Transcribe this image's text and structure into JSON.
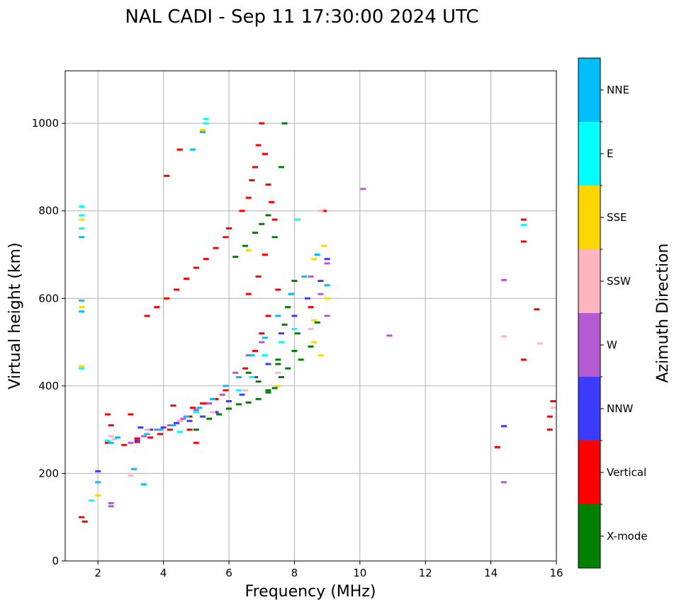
{
  "chart_data": {
    "type": "scatter",
    "title": "NAL CADI - Sep 11 17:30:00 2024 UTC",
    "xlabel": "Frequency (MHz)",
    "ylabel": "Virtual height (km)",
    "xlim": [
      1,
      16
    ],
    "ylim": [
      0,
      1120
    ],
    "xticks": [
      2,
      4,
      6,
      8,
      10,
      12,
      14,
      16
    ],
    "yticks": [
      0,
      200,
      400,
      600,
      800,
      1000
    ],
    "grid": true,
    "colorbar": {
      "label": "Azimuth Direction",
      "position": "right",
      "categories": [
        {
          "name": "X-mode",
          "color": "#008000"
        },
        {
          "name": "Vertical",
          "color": "#ff0000"
        },
        {
          "name": "NNW",
          "color": "#3c3cff"
        },
        {
          "name": "W",
          "color": "#b45ad2"
        },
        {
          "name": "SSW",
          "color": "#ffb6c1"
        },
        {
          "name": "SSE",
          "color": "#ffd700"
        },
        {
          "name": "E",
          "color": "#00ffff"
        },
        {
          "name": "NNE",
          "color": "#00bfff"
        }
      ]
    },
    "series": [
      {
        "name": "X-mode",
        "color": "#008000",
        "x": [
          5.0,
          5.4,
          5.7,
          6.0,
          6.3,
          6.6,
          6.9,
          7.2,
          7.4,
          7.6,
          7.8,
          8.0,
          6.2,
          6.5,
          6.8,
          7.0,
          7.2,
          7.4,
          7.5,
          7.6,
          7.7,
          7.8,
          7.9,
          8.0,
          8.1,
          8.2,
          6.6,
          6.9,
          7.2,
          7.5,
          8.5,
          8.7,
          7.6,
          7.7
        ],
        "y": [
          300,
          325,
          335,
          348,
          358,
          362,
          370,
          385,
          395,
          420,
          440,
          480,
          695,
          720,
          750,
          770,
          790,
          740,
          460,
          500,
          540,
          580,
          610,
          640,
          520,
          460,
          430,
          410,
          390,
          450,
          490,
          545,
          900,
          1000
        ]
      },
      {
        "name": "Vertical",
        "color": "#ff0000",
        "x": [
          1.5,
          1.6,
          2.3,
          2.8,
          3.2,
          3.6,
          3.9,
          4.2,
          4.5,
          4.8,
          5.0,
          5.3,
          5.6,
          5.9,
          3.5,
          3.8,
          4.1,
          4.4,
          4.7,
          5.0,
          5.3,
          5.6,
          5.9,
          6.0,
          6.4,
          6.6,
          6.7,
          6.8,
          6.9,
          7.0,
          7.1,
          7.2,
          6.5,
          6.8,
          7.0,
          7.2,
          6.6,
          6.9,
          7.1,
          14.2,
          15.0,
          15.0,
          15.0,
          15.4,
          15.8,
          15.8,
          15.9,
          8.5,
          8.9,
          4.1,
          4.5,
          3.2,
          3.0,
          2.3,
          2.4,
          4.3,
          5.2,
          5.0,
          4.8,
          4.9,
          7.3,
          7.4,
          7.5
        ],
        "y": [
          100,
          90,
          270,
          265,
          272,
          282,
          290,
          300,
          320,
          330,
          340,
          360,
          370,
          390,
          560,
          580,
          600,
          620,
          645,
          670,
          690,
          715,
          740,
          760,
          800,
          830,
          870,
          900,
          950,
          1000,
          930,
          860,
          440,
          480,
          520,
          560,
          610,
          650,
          700,
          260,
          730,
          460,
          780,
          575,
          300,
          330,
          365,
          580,
          800,
          880,
          940,
          280,
          335,
          335,
          310,
          355,
          360,
          270,
          300,
          350,
          820,
          780,
          620
        ]
      },
      {
        "name": "NNW",
        "color": "#3c3cff",
        "x": [
          3.2,
          3.6,
          4.0,
          4.4,
          4.8,
          5.2,
          5.6,
          6.0,
          6.4,
          6.8,
          7.2,
          7.6,
          8.0,
          8.4,
          8.8,
          9.0,
          2.0,
          3.3,
          14.4
        ],
        "y": [
          275,
          300,
          305,
          315,
          320,
          330,
          340,
          365,
          380,
          420,
          450,
          520,
          560,
          600,
          640,
          690,
          205,
          305,
          308
        ]
      },
      {
        "name": "W",
        "color": "#b45ad2",
        "x": [
          3.0,
          3.4,
          3.8,
          4.2,
          4.6,
          5.0,
          5.4,
          5.8,
          6.2,
          6.6,
          7.0,
          8.5,
          8.8,
          9.0,
          9.0,
          10.1,
          10.9,
          14.4,
          14.4,
          2.4,
          2.4
        ],
        "y": [
          270,
          285,
          300,
          310,
          325,
          345,
          360,
          380,
          430,
          470,
          500,
          650,
          610,
          680,
          560,
          850,
          515,
          180,
          642,
          125,
          132
        ]
      },
      {
        "name": "SSW",
        "color": "#ffb6c1",
        "x": [
          2.4,
          2.5,
          3.0,
          3.5,
          4.5,
          5.5,
          6.5,
          7.5,
          8.5,
          8.8,
          14.4,
          15.5,
          15.9
        ],
        "y": [
          285,
          278,
          195,
          300,
          320,
          340,
          390,
          430,
          530,
          800,
          513,
          497,
          350
        ]
      },
      {
        "name": "SSE",
        "color": "#ffd700",
        "x": [
          1.5,
          1.5,
          1.5,
          2.0,
          5.2,
          6.6,
          7.5,
          8.6,
          8.6,
          8.9,
          9.0,
          8.8,
          8.6
        ],
        "y": [
          580,
          445,
          780,
          150,
          985,
          710,
          400,
          690,
          550,
          720,
          600,
          470,
          500
        ]
      },
      {
        "name": "E",
        "color": "#00ffff",
        "x": [
          1.5,
          1.5,
          1.5,
          1.5,
          5.3,
          5.3,
          2.3,
          4.5,
          5.0,
          6.3,
          6.7,
          7.1,
          7.6,
          8.0,
          8.1,
          15.0,
          1.8
        ],
        "y": [
          760,
          790,
          810,
          440,
          1010,
          1000,
          275,
          295,
          340,
          390,
          420,
          470,
          500,
          530,
          780,
          768,
          138
        ]
      },
      {
        "name": "NNE",
        "color": "#00bfff",
        "x": [
          1.5,
          1.5,
          1.5,
          2.0,
          2.4,
          2.6,
          3.1,
          3.5,
          3.9,
          4.3,
          4.7,
          5.1,
          5.5,
          5.9,
          6.3,
          6.7,
          7.1,
          7.5,
          7.9,
          8.3,
          8.7,
          9.0,
          4.9,
          5.2,
          3.4
        ],
        "y": [
          740,
          595,
          570,
          180,
          270,
          282,
          210,
          290,
          300,
          310,
          330,
          350,
          370,
          400,
          420,
          470,
          510,
          560,
          610,
          650,
          700,
          630,
          940,
          980,
          175
        ]
      }
    ]
  }
}
